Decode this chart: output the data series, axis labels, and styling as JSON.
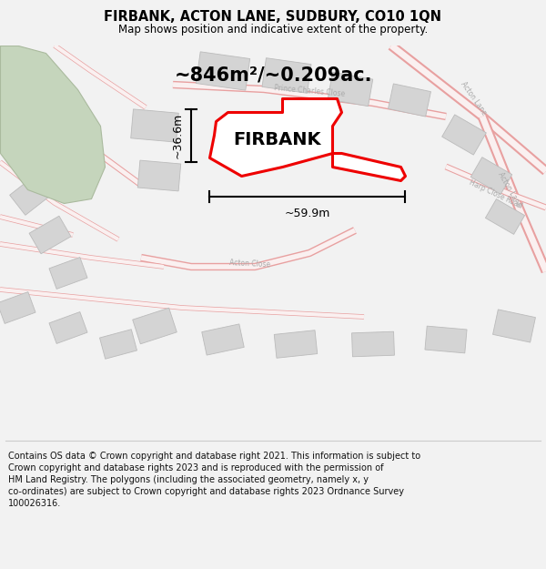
{
  "title": "FIRBANK, ACTON LANE, SUDBURY, CO10 1QN",
  "subtitle": "Map shows position and indicative extent of the property.",
  "area_text": "~846m²/~0.209ac.",
  "firbank_label": "FIRBANK",
  "dim_height": "~36.6m",
  "dim_width": "~59.9m",
  "footer": "Contains OS data © Crown copyright and database right 2021. This information is subject to\nCrown copyright and database rights 2023 and is reproduced with the permission of\nHM Land Registry. The polygons (including the associated geometry, namely x, y\nco-ordinates) are subject to Crown copyright and database rights 2023 Ordnance Survey\n100026316.",
  "bg_color": "#f2f2f2",
  "map_bg": "#ffffff",
  "road_color": "#e8a0a0",
  "block_color": "#d4d4d4",
  "red_poly_color": "#ee0000",
  "green_area_color": "#c5d5bc",
  "figsize": [
    6.0,
    6.25
  ],
  "dpi": 100,
  "title_fontsize": 10.5,
  "subtitle_fontsize": 8.5,
  "area_fontsize": 15,
  "firbank_fontsize": 14,
  "dim_fontsize": 9,
  "footer_fontsize": 7
}
